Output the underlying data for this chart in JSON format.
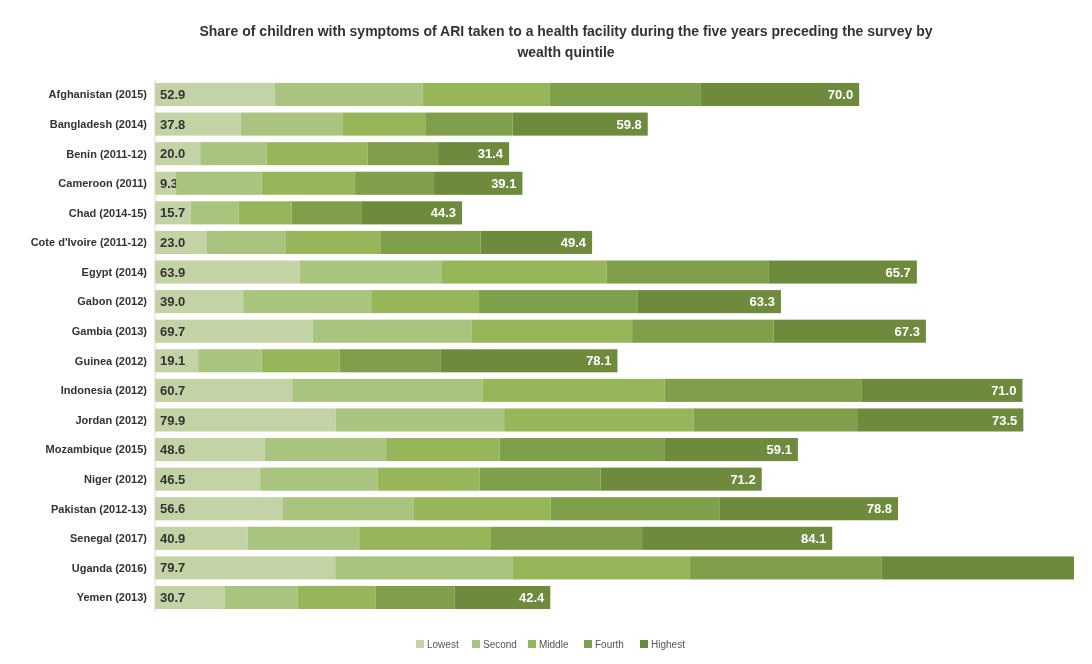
{
  "chart_data": {
    "type": "bar",
    "orientation": "horizontal",
    "stacked": true,
    "title": "Share of children with symptoms of ARI taken to a health facility during the five years preceding the survey by wealth quintile",
    "categories": [
      "Afghanistan (2015)",
      "Bangladesh (2014)",
      "Benin (2011-12)",
      "Cameroon (2011)",
      "Chad (2014-15)",
      "Cote d'Ivoire (2011-12)",
      "Egypt (2014)",
      "Gabon (2012)",
      "Gambia (2013)",
      "Guinea (2012)",
      "Indonesia (2012)",
      "Jordan (2012)",
      "Mozambique (2015)",
      "Niger (2012)",
      "Pakistan (2012-13)",
      "Senegal (2017)",
      "Uganda (2016)",
      "Yemen (2013)"
    ],
    "tick_labels": "y",
    "legend": "bottom",
    "series": [
      {
        "name": "Lowest",
        "color": "#c3d3a5",
        "values": [
          52.9,
          37.8,
          20.0,
          9.3,
          15.7,
          23.0,
          63.9,
          39.0,
          69.7,
          19.1,
          60.7,
          79.9,
          48.6,
          46.5,
          56.6,
          40.9,
          79.7,
          30.7
        ],
        "value_labels": [
          "52.9",
          "37.8",
          "20.0",
          "9.3",
          "15.7",
          "23.0",
          "63.9",
          "39.0",
          "69.7",
          "19.1",
          "60.7",
          "79.9",
          "48.6",
          "46.5",
          "56.6",
          "40.9",
          "79.7",
          "30.7"
        ]
      },
      {
        "name": "Second",
        "color": "#a9c47f",
        "values": [
          65.5,
          45.3,
          29.4,
          37.9,
          21.3,
          34.9,
          63.0,
          56.6,
          70.2,
          28.1,
          84.3,
          74.5,
          53.6,
          51.9,
          57.9,
          49.4,
          78.3,
          32.3
        ]
      },
      {
        "name": "Middle",
        "color": "#97b659",
        "values": [
          56.2,
          36.4,
          44.7,
          41.3,
          23.4,
          41.7,
          72.8,
          47.7,
          71.1,
          34.5,
          80.4,
          83.8,
          50.2,
          45.1,
          60.4,
          58.3,
          78.3,
          34.5
        ]
      },
      {
        "name": "Fourth",
        "color": "#7f9f4a",
        "values": [
          66.8,
          38.6,
          31.1,
          34.9,
          31.1,
          44.3,
          71.5,
          70.2,
          62.6,
          44.7,
          87.2,
          72.3,
          72.8,
          53.6,
          74.9,
          66.8,
          85.1,
          34.9
        ]
      },
      {
        "name": "Highest",
        "color": "#6e8b3d",
        "values": [
          70.0,
          59.8,
          31.4,
          39.1,
          44.3,
          49.4,
          65.7,
          63.3,
          67.3,
          78.1,
          71.0,
          73.5,
          59.1,
          71.2,
          78.8,
          84.1,
          85.0,
          42.4
        ],
        "value_labels": [
          "70.0",
          "59.8",
          "31.4",
          "39.1",
          "44.3",
          "49.4",
          "65.7",
          "63.3",
          "67.3",
          "78.1",
          "71.0",
          "73.5",
          "59.1",
          "71.2",
          "78.8",
          "84.1",
          null,
          "42.4"
        ]
      }
    ]
  }
}
